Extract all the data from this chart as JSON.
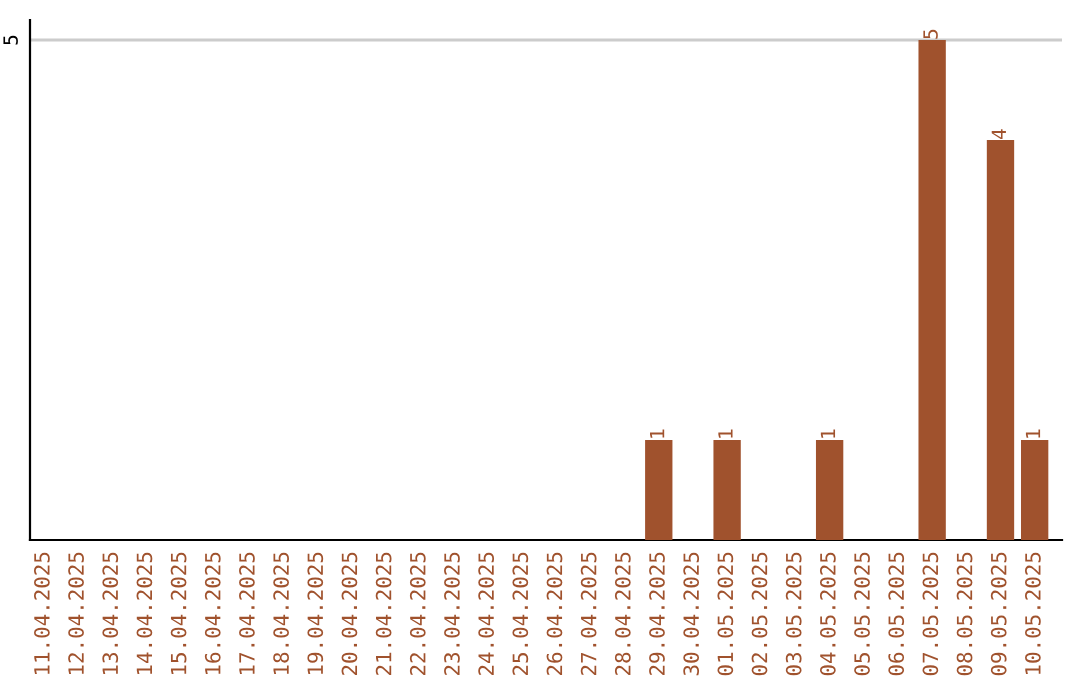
{
  "chart_data": {
    "type": "bar",
    "categories": [
      "11.04.2025",
      "12.04.2025",
      "13.04.2025",
      "14.04.2025",
      "15.04.2025",
      "16.04.2025",
      "17.04.2025",
      "18.04.2025",
      "19.04.2025",
      "20.04.2025",
      "21.04.2025",
      "22.04.2025",
      "23.04.2025",
      "24.04.2025",
      "25.04.2025",
      "26.04.2025",
      "27.04.2025",
      "28.04.2025",
      "29.04.2025",
      "30.04.2025",
      "01.05.2025",
      "02.05.2025",
      "03.05.2025",
      "04.05.2025",
      "05.05.2025",
      "06.05.2025",
      "07.05.2025",
      "08.05.2025",
      "09.05.2025",
      "10.05.2025"
    ],
    "values": [
      null,
      null,
      null,
      null,
      null,
      null,
      null,
      null,
      null,
      null,
      null,
      null,
      null,
      null,
      null,
      null,
      null,
      null,
      1,
      null,
      1,
      null,
      null,
      1,
      null,
      null,
      5,
      null,
      4,
      1
    ],
    "data_labels": true,
    "color": "#a0522d",
    "ylim": [
      0,
      5.2
    ],
    "ref_lines": [
      {
        "axis": "y",
        "value": 5,
        "label": "5",
        "color": "#cccccc"
      }
    ]
  }
}
